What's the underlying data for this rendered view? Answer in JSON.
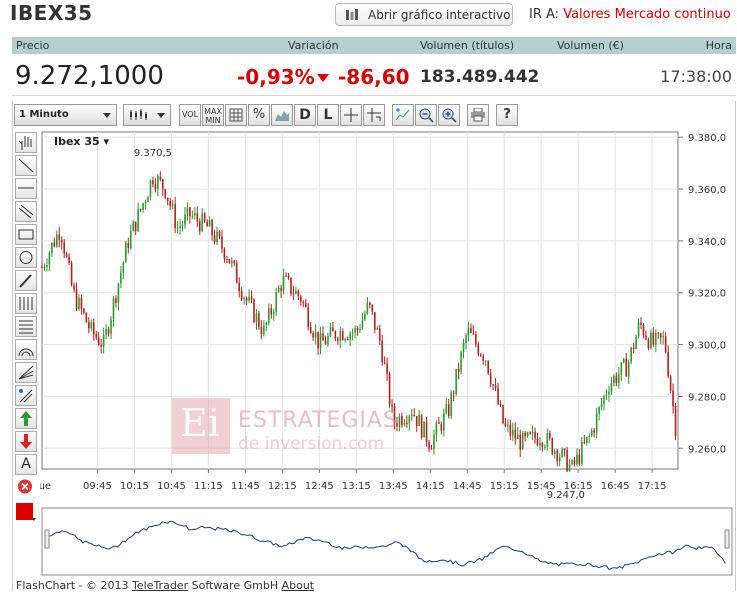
{
  "header": {
    "title": "IBEX35",
    "interactive_button": "Abrir gráfico interactivo",
    "goto_label": "IR A:",
    "goto_value": "Valores Mercado continuo"
  },
  "quote_table": {
    "columns": [
      "Precio",
      "Variación",
      "Volumen (títulos)",
      "Volumen (€)",
      "Hora"
    ],
    "price": "9.272,1000",
    "change_pct": "-0,93%",
    "change_abs": "-86,60",
    "volume_titles": "183.489.442",
    "volume_eur": "",
    "time": "17:38:00"
  },
  "toolbar": {
    "interval": "1 Minuto",
    "buttons": [
      "VOL",
      "MAX MIN",
      "D",
      "L",
      "?"
    ]
  },
  "colors": {
    "header_bg": "#b5cfcf",
    "negative": "#d40000",
    "candle_up": "#2a9a2a",
    "candle_down": "#b02020",
    "watermark": "#e6b3b8"
  },
  "watermark": {
    "logo": "Ei",
    "line1": "ESTRATEGIAS",
    "line2": "de inversion.com"
  },
  "footer": {
    "prefix": "FlashChart - © 2013",
    "link1": "TeleTrader",
    "middle": "Software GmbH",
    "link2": "About"
  },
  "chart_data": {
    "type": "candlestick",
    "instrument_label": "Ibex 35",
    "x_first_label": "Tue",
    "x_ticks": [
      "09:45",
      "10:15",
      "10:45",
      "11:15",
      "11:45",
      "12:15",
      "12:45",
      "13:15",
      "13:45",
      "14:15",
      "14:45",
      "15:15",
      "15:45",
      "16:15",
      "16:45",
      "17:15"
    ],
    "y_ticks": [
      "9.260,0",
      "9.280,0",
      "9.300,0",
      "9.320,0",
      "9.340,0",
      "9.360,0",
      "9.380,0"
    ],
    "ylim": [
      9252,
      9382
    ],
    "annotations": [
      {
        "text": "9.370,5",
        "time": "10:30",
        "value": 9370.5
      },
      {
        "text": "9.247,0",
        "time": "16:05",
        "value": 9247.0
      }
    ],
    "series_approx": [
      {
        "t": "09:00",
        "v": 9330
      },
      {
        "t": "09:15",
        "v": 9345
      },
      {
        "t": "09:25",
        "v": 9320
      },
      {
        "t": "09:40",
        "v": 9305
      },
      {
        "t": "09:50",
        "v": 9300
      },
      {
        "t": "10:00",
        "v": 9320
      },
      {
        "t": "10:10",
        "v": 9340
      },
      {
        "t": "10:20",
        "v": 9352
      },
      {
        "t": "10:30",
        "v": 9365
      },
      {
        "t": "10:40",
        "v": 9360
      },
      {
        "t": "10:50",
        "v": 9345
      },
      {
        "t": "11:00",
        "v": 9350
      },
      {
        "t": "11:15",
        "v": 9345
      },
      {
        "t": "11:30",
        "v": 9335
      },
      {
        "t": "11:45",
        "v": 9318
      },
      {
        "t": "12:00",
        "v": 9305
      },
      {
        "t": "12:15",
        "v": 9325
      },
      {
        "t": "12:30",
        "v": 9318
      },
      {
        "t": "12:45",
        "v": 9300
      },
      {
        "t": "13:00",
        "v": 9305
      },
      {
        "t": "13:15",
        "v": 9305
      },
      {
        "t": "13:25",
        "v": 9315
      },
      {
        "t": "13:35",
        "v": 9300
      },
      {
        "t": "13:45",
        "v": 9270
      },
      {
        "t": "14:00",
        "v": 9275
      },
      {
        "t": "14:15",
        "v": 9262
      },
      {
        "t": "14:30",
        "v": 9275
      },
      {
        "t": "14:45",
        "v": 9305
      },
      {
        "t": "15:00",
        "v": 9295
      },
      {
        "t": "15:15",
        "v": 9268
      },
      {
        "t": "15:30",
        "v": 9262
      },
      {
        "t": "15:45",
        "v": 9265
      },
      {
        "t": "16:00",
        "v": 9258
      },
      {
        "t": "16:10",
        "v": 9252
      },
      {
        "t": "16:25",
        "v": 9265
      },
      {
        "t": "16:40",
        "v": 9285
      },
      {
        "t": "16:55",
        "v": 9292
      },
      {
        "t": "17:05",
        "v": 9308
      },
      {
        "t": "17:15",
        "v": 9300
      },
      {
        "t": "17:25",
        "v": 9302
      },
      {
        "t": "17:35",
        "v": 9265
      }
    ],
    "grid": true,
    "navigator": true
  }
}
